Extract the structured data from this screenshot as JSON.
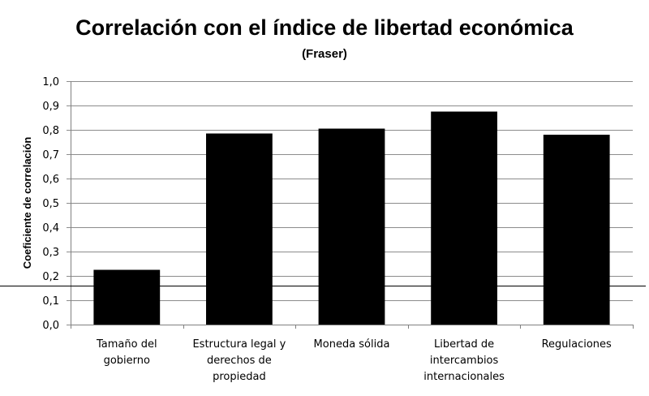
{
  "chart_data": {
    "type": "bar",
    "title": "Correlación con el índice de libertad económica",
    "subtitle": "(Fraser)",
    "xlabel": "",
    "ylabel": "Coeficiente de correlación",
    "ylim": [
      0,
      1.0
    ],
    "yticks": [
      "0,0",
      "0,1",
      "0,2",
      "0,3",
      "0,4",
      "0,5",
      "0,6",
      "0,7",
      "0,8",
      "0,9",
      "1,0"
    ],
    "categories": [
      [
        "Tamaño del",
        "gobierno"
      ],
      [
        "Estructura legal y",
        "derechos de",
        "propiedad"
      ],
      [
        "Moneda sólida"
      ],
      [
        "Libertad de",
        "intercambios",
        "internacionales"
      ],
      [
        "Regulaciones"
      ]
    ],
    "values": [
      0.225,
      0.785,
      0.805,
      0.875,
      0.78
    ],
    "reference_line": 0.16,
    "bar_color": "#000000",
    "grid": true,
    "legend": "none"
  }
}
